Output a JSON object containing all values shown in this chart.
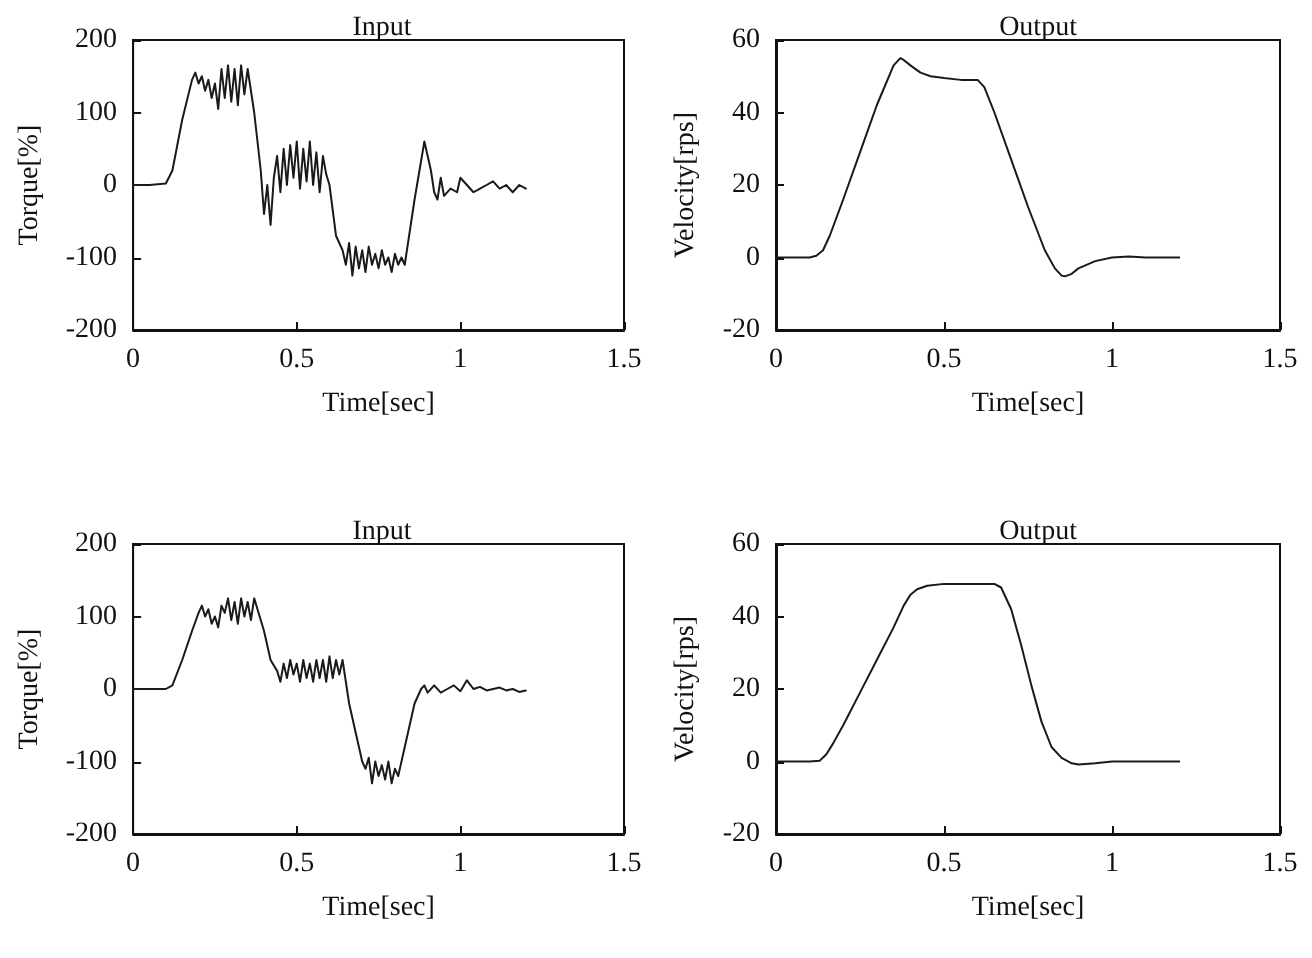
{
  "chart_data": [
    {
      "type": "line",
      "title": "Input",
      "xlabel": "Time[sec]",
      "ylabel": "Torque[%]",
      "xlim": [
        0,
        1.5
      ],
      "xticks": [
        0,
        0.5,
        1,
        1.5
      ],
      "ylim": [
        -200,
        200
      ],
      "yticks": [
        -200,
        -100,
        0,
        100,
        200
      ],
      "grid": false,
      "marker": "none",
      "line_style": "solid",
      "series": [
        {
          "color": "#1a1a1a",
          "x": [
            0,
            0.05,
            0.1,
            0.12,
            0.15,
            0.18,
            0.19,
            0.2,
            0.21,
            0.22,
            0.23,
            0.24,
            0.25,
            0.26,
            0.27,
            0.28,
            0.29,
            0.3,
            0.31,
            0.32,
            0.33,
            0.34,
            0.35,
            0.37,
            0.39,
            0.4,
            0.41,
            0.42,
            0.43,
            0.44,
            0.45,
            0.46,
            0.47,
            0.48,
            0.49,
            0.5,
            0.51,
            0.52,
            0.53,
            0.54,
            0.55,
            0.56,
            0.57,
            0.58,
            0.59,
            0.6,
            0.62,
            0.64,
            0.65,
            0.66,
            0.67,
            0.68,
            0.69,
            0.7,
            0.71,
            0.72,
            0.73,
            0.74,
            0.75,
            0.76,
            0.77,
            0.78,
            0.79,
            0.8,
            0.81,
            0.82,
            0.83,
            0.86,
            0.89,
            0.9,
            0.91,
            0.92,
            0.93,
            0.94,
            0.95,
            0.97,
            0.99,
            1.0,
            1.02,
            1.04,
            1.06,
            1.08,
            1.1,
            1.12,
            1.14,
            1.16,
            1.18,
            1.2
          ],
          "values": [
            0,
            0,
            2,
            20,
            90,
            145,
            155,
            140,
            150,
            130,
            145,
            120,
            140,
            105,
            160,
            120,
            165,
            115,
            160,
            110,
            165,
            125,
            160,
            100,
            20,
            -40,
            0,
            -55,
            10,
            40,
            -10,
            50,
            0,
            55,
            10,
            60,
            -5,
            50,
            5,
            60,
            0,
            45,
            -10,
            40,
            15,
            0,
            -70,
            -90,
            -110,
            -80,
            -125,
            -85,
            -115,
            -90,
            -120,
            -85,
            -110,
            -95,
            -115,
            -90,
            -110,
            -100,
            -120,
            -95,
            -110,
            -100,
            -110,
            -20,
            60,
            40,
            20,
            -10,
            -20,
            10,
            -15,
            -5,
            -10,
            10,
            0,
            -10,
            -5,
            0,
            5,
            -5,
            0,
            -10,
            0,
            -5
          ]
        }
      ]
    },
    {
      "type": "line",
      "title": "Output",
      "xlabel": "Time[sec]",
      "ylabel": "Velocity[rps]",
      "xlim": [
        0,
        1.5
      ],
      "xticks": [
        0,
        0.5,
        1,
        1.5
      ],
      "ylim": [
        -20,
        60
      ],
      "yticks": [
        -20,
        0,
        20,
        40,
        60
      ],
      "grid": false,
      "marker": "none",
      "line_style": "solid",
      "series": [
        {
          "color": "#1a1a1a",
          "x": [
            0,
            0.05,
            0.1,
            0.12,
            0.14,
            0.16,
            0.2,
            0.25,
            0.3,
            0.35,
            0.37,
            0.38,
            0.4,
            0.43,
            0.46,
            0.5,
            0.55,
            0.6,
            0.62,
            0.65,
            0.7,
            0.75,
            0.8,
            0.83,
            0.85,
            0.86,
            0.88,
            0.9,
            0.95,
            1.0,
            1.05,
            1.1,
            1.15,
            1.2
          ],
          "values": [
            0,
            0,
            0,
            0.5,
            2,
            6,
            16,
            29,
            42,
            53,
            55,
            54.5,
            53,
            51,
            50,
            49.5,
            49,
            49,
            47,
            40,
            27,
            14,
            2,
            -3,
            -5,
            -5.2,
            -4.5,
            -3,
            -1,
            0,
            0.3,
            0,
            0,
            0
          ]
        }
      ]
    },
    {
      "type": "line",
      "title": "Input",
      "xlabel": "Time[sec]",
      "ylabel": "Torque[%]",
      "xlim": [
        0,
        1.5
      ],
      "xticks": [
        0,
        0.5,
        1,
        1.5
      ],
      "ylim": [
        -200,
        200
      ],
      "yticks": [
        -200,
        -100,
        0,
        100,
        200
      ],
      "grid": false,
      "marker": "none",
      "line_style": "solid",
      "series": [
        {
          "color": "#1a1a1a",
          "x": [
            0,
            0.05,
            0.1,
            0.12,
            0.15,
            0.18,
            0.2,
            0.21,
            0.22,
            0.23,
            0.24,
            0.25,
            0.26,
            0.27,
            0.28,
            0.29,
            0.3,
            0.31,
            0.32,
            0.33,
            0.34,
            0.35,
            0.36,
            0.37,
            0.38,
            0.4,
            0.42,
            0.44,
            0.45,
            0.46,
            0.47,
            0.48,
            0.49,
            0.5,
            0.51,
            0.52,
            0.53,
            0.54,
            0.55,
            0.56,
            0.57,
            0.58,
            0.59,
            0.6,
            0.61,
            0.62,
            0.63,
            0.64,
            0.65,
            0.66,
            0.68,
            0.7,
            0.71,
            0.72,
            0.73,
            0.74,
            0.75,
            0.76,
            0.77,
            0.78,
            0.79,
            0.8,
            0.81,
            0.82,
            0.84,
            0.86,
            0.88,
            0.89,
            0.9,
            0.92,
            0.94,
            0.96,
            0.98,
            1.0,
            1.02,
            1.04,
            1.06,
            1.08,
            1.1,
            1.12,
            1.14,
            1.16,
            1.18,
            1.2
          ],
          "values": [
            0,
            0,
            0,
            5,
            40,
            80,
            105,
            115,
            100,
            110,
            90,
            100,
            85,
            115,
            105,
            125,
            95,
            120,
            90,
            125,
            100,
            120,
            95,
            125,
            110,
            80,
            40,
            25,
            10,
            35,
            15,
            40,
            20,
            35,
            10,
            40,
            15,
            35,
            10,
            40,
            15,
            40,
            10,
            45,
            15,
            40,
            20,
            40,
            10,
            -20,
            -60,
            -100,
            -110,
            -95,
            -130,
            -100,
            -120,
            -105,
            -125,
            -100,
            -130,
            -110,
            -120,
            -100,
            -60,
            -20,
            0,
            5,
            -5,
            5,
            -5,
            0,
            5,
            -3,
            12,
            0,
            3,
            -2,
            0,
            2,
            -2,
            0,
            -4,
            -2
          ]
        }
      ]
    },
    {
      "type": "line",
      "title": "Output",
      "xlabel": "Time[sec]",
      "ylabel": "Velocity[rps]",
      "xlim": [
        0,
        1.5
      ],
      "xticks": [
        0,
        0.5,
        1,
        1.5
      ],
      "ylim": [
        -20,
        60
      ],
      "yticks": [
        -20,
        0,
        20,
        40,
        60
      ],
      "grid": false,
      "marker": "none",
      "line_style": "solid",
      "series": [
        {
          "color": "#1a1a1a",
          "x": [
            0,
            0.05,
            0.1,
            0.13,
            0.15,
            0.17,
            0.2,
            0.25,
            0.3,
            0.35,
            0.38,
            0.4,
            0.42,
            0.45,
            0.5,
            0.55,
            0.6,
            0.65,
            0.67,
            0.7,
            0.73,
            0.76,
            0.79,
            0.82,
            0.85,
            0.88,
            0.9,
            0.95,
            1.0,
            1.1,
            1.2
          ],
          "values": [
            0,
            0,
            0,
            0.2,
            2,
            5,
            10,
            19,
            28,
            37,
            43,
            46,
            47.5,
            48.5,
            49,
            49,
            49,
            49,
            48,
            42,
            32,
            21,
            11,
            4,
            1,
            -0.5,
            -0.8,
            -0.5,
            0,
            0,
            0
          ]
        }
      ]
    }
  ]
}
